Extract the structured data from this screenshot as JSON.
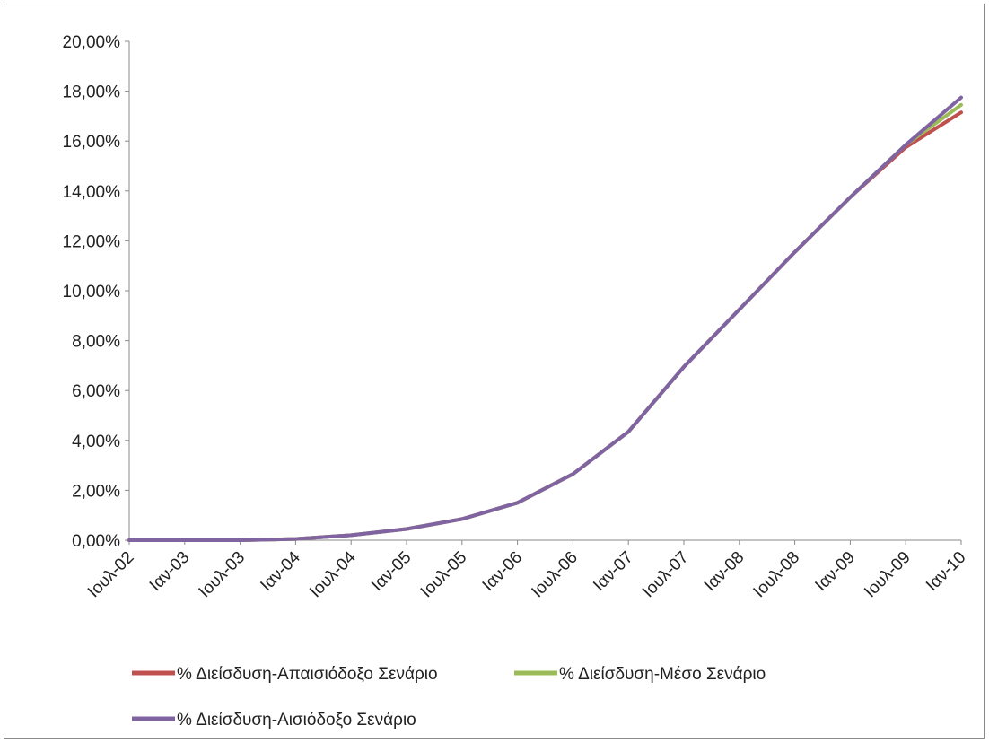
{
  "chart_data": {
    "type": "line",
    "title": "",
    "xlabel": "",
    "ylabel": "",
    "ylim": [
      0,
      0.2
    ],
    "y_ticks": [
      "0,00%",
      "2,00%",
      "4,00%",
      "6,00%",
      "8,00%",
      "10,00%",
      "12,00%",
      "14,00%",
      "16,00%",
      "18,00%",
      "20,00%"
    ],
    "x_ticks": [
      "Ιουλ-02",
      "Ιαν-03",
      "Ιουλ-03",
      "Ιαν-04",
      "Ιουλ-04",
      "Ιαν-05",
      "Ιουλ-05",
      "Ιαν-06",
      "Ιουλ-06",
      "Ιαν-07",
      "Ιουλ-07",
      "Ιαν-08",
      "Ιουλ-08",
      "Ιαν-09",
      "Ιουλ-09",
      "Ιαν-10"
    ],
    "x": [
      0,
      6,
      12,
      18,
      24,
      30,
      36,
      42,
      48,
      54,
      60,
      66,
      72,
      78,
      84,
      90
    ],
    "grid": false,
    "legend_position": "bottom",
    "series": [
      {
        "name": "% Διείσδυση-Απαισιόδοξο Σενάριο",
        "color": "#c0504d",
        "values": [
          0,
          0,
          0,
          0.0005,
          0.002,
          0.0045,
          0.0085,
          0.015,
          0.0265,
          0.0435,
          0.0695,
          0.0925,
          0.1155,
          0.1375,
          0.1575,
          0.1715
        ]
      },
      {
        "name": "% Διείσδυση-Μέσο Σενάριο",
        "color": "#9bbb59",
        "values": [
          0,
          0,
          0,
          0.0005,
          0.002,
          0.0045,
          0.0085,
          0.015,
          0.0265,
          0.0435,
          0.0695,
          0.0925,
          0.1155,
          0.1375,
          0.1585,
          0.1745
        ]
      },
      {
        "name": "% Διείσδυση-Αισιόδοξο Σενάριο",
        "color": "#8064a2",
        "values": [
          0,
          0,
          0,
          0.0005,
          0.002,
          0.0045,
          0.0085,
          0.015,
          0.0265,
          0.0435,
          0.0695,
          0.0925,
          0.1155,
          0.1375,
          0.1585,
          0.1775
        ]
      }
    ]
  }
}
